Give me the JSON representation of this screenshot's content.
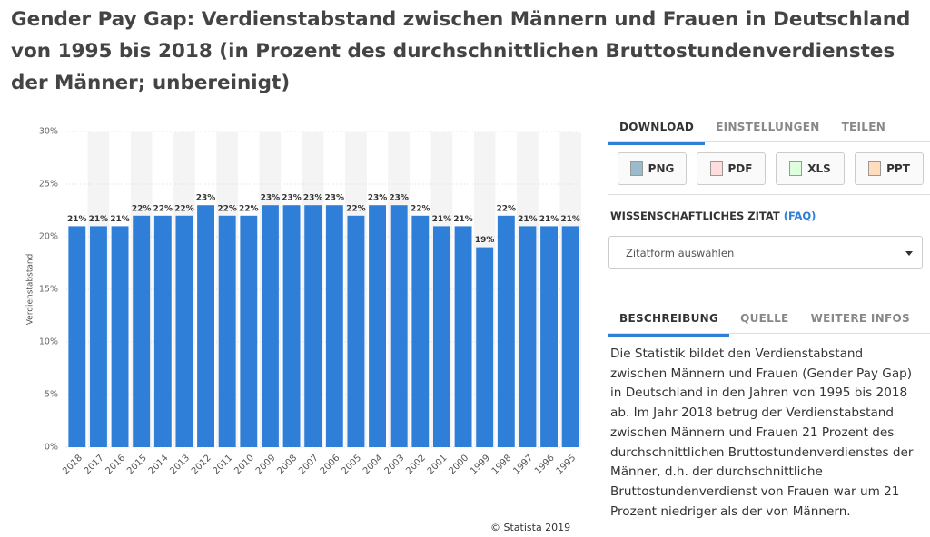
{
  "chart_data": {
    "type": "bar",
    "title": "Gender Pay Gap: Verdienstabstand zwischen Männern und Frauen in Deutschland von 1995 bis 2018 (in Prozent des durchschnittlichen Bruttostundenverdienstes der Männer; unbereinigt)",
    "y_label": "Verdienstabstand",
    "color": "#2f7ed8",
    "categories": [
      "2018",
      "2017",
      "2016",
      "2015",
      "2014",
      "2013",
      "2012",
      "2011",
      "2010",
      "2009",
      "2008",
      "2007",
      "2006",
      "2005",
      "2004",
      "2003",
      "2002",
      "2001",
      "2000",
      "1999",
      "1998",
      "1997",
      "1996",
      "1995"
    ],
    "values": [
      21,
      21,
      21,
      22,
      22,
      22,
      23,
      22,
      22,
      23,
      23,
      23,
      23,
      22,
      23,
      23,
      22,
      21,
      21,
      19,
      22,
      21,
      21,
      21
    ],
    "value_labels": [
      "21%",
      "21%",
      "21%",
      "22%",
      "22%",
      "22%",
      "23%",
      "22%",
      "22%",
      "23%",
      "23%",
      "23%",
      "23%",
      "22%",
      "23%",
      "23%",
      "22%",
      "21%",
      "21%",
      "19%",
      "22%",
      "21%",
      "21%",
      "21%"
    ],
    "ylim": [
      0,
      30
    ],
    "yticks": [
      {
        "value": 0,
        "label": "0%"
      },
      {
        "value": 5,
        "label": "5%"
      },
      {
        "value": 10,
        "label": "10%"
      },
      {
        "value": 15,
        "label": "15%"
      },
      {
        "value": 20,
        "label": "20%"
      },
      {
        "value": 25,
        "label": "25%"
      },
      {
        "value": 30,
        "label": "30%"
      }
    ],
    "grid": true,
    "credit": "© Statista 2019"
  },
  "panel": {
    "tabs1": [
      "DOWNLOAD",
      "EINSTELLUNGEN",
      "TEILEN"
    ],
    "buttons": [
      "PNG",
      "PDF",
      "XLS",
      "PPT"
    ],
    "citation": "WISSENSCHAFTLICHES ZITAT",
    "faq": "(FAQ)",
    "select": "Zitatform auswählen",
    "tabs2": [
      "BESCHREIBUNG",
      "QUELLE",
      "WEITERE INFOS"
    ],
    "description": "Die Statistik bildet den Verdienstabstand zwischen Männern und Frauen (Gender Pay Gap) in Deutschland in den Jahren von 1995 bis 2018 ab. Im Jahr 2018 betrug der Verdienstabstand zwischen Männern und Frauen 21 Prozent des durchschnittlichen Bruttostundenverdienstes der Männer, d.h. der durchschnittliche Bruttostundenverdienst von Frauen war um 21 Prozent niedriger als der von Männern."
  }
}
